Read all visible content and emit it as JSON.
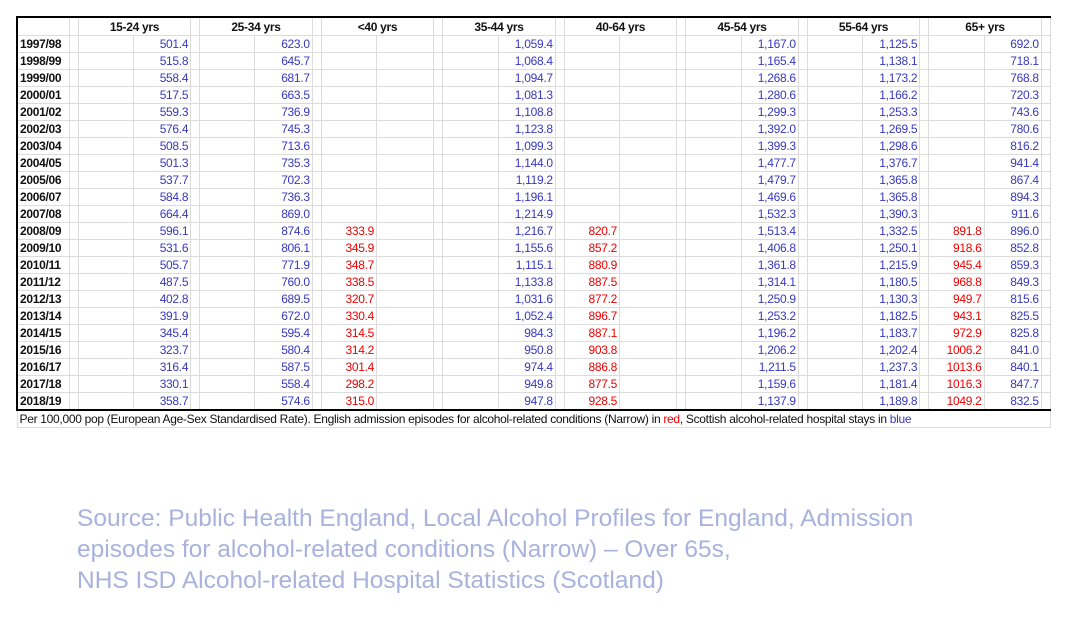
{
  "table": {
    "groups": [
      "15-24 yrs",
      "25-34 yrs",
      "<40 yrs",
      "35-44 yrs",
      "40-64 yrs",
      "45-54 yrs",
      "55-64 yrs",
      "65+ yrs"
    ],
    "columns": [
      {
        "group": 0,
        "series": "blue"
      },
      {
        "group": 1,
        "series": "blue"
      },
      {
        "group": 2,
        "series": "red"
      },
      {
        "group": 3,
        "series": "blue"
      },
      {
        "group": 4,
        "series": "red"
      },
      {
        "group": 5,
        "series": "blue"
      },
      {
        "group": 6,
        "series": "blue"
      },
      {
        "group": 7,
        "series": "red"
      },
      {
        "group": 7,
        "series": "blue"
      }
    ],
    "rows": [
      {
        "year": "1997/98",
        "values": [
          "501.4",
          "623.0",
          "",
          "1,059.4",
          "",
          "1,167.0",
          "1,125.5",
          "",
          "692.0"
        ]
      },
      {
        "year": "1998/99",
        "values": [
          "515.8",
          "645.7",
          "",
          "1,068.4",
          "",
          "1,165.4",
          "1,138.1",
          "",
          "718.1"
        ]
      },
      {
        "year": "1999/00",
        "values": [
          "558.4",
          "681.7",
          "",
          "1,094.7",
          "",
          "1,268.6",
          "1,173.2",
          "",
          "768.8"
        ]
      },
      {
        "year": "2000/01",
        "values": [
          "517.5",
          "663.5",
          "",
          "1,081.3",
          "",
          "1,280.6",
          "1,166.2",
          "",
          "720.3"
        ]
      },
      {
        "year": "2001/02",
        "values": [
          "559.3",
          "736.9",
          "",
          "1,108.8",
          "",
          "1,299.3",
          "1,253.3",
          "",
          "743.6"
        ]
      },
      {
        "year": "2002/03",
        "values": [
          "576.4",
          "745.3",
          "",
          "1,123.8",
          "",
          "1,392.0",
          "1,269.5",
          "",
          "780.6"
        ]
      },
      {
        "year": "2003/04",
        "values": [
          "508.5",
          "713.6",
          "",
          "1,099.3",
          "",
          "1,399.3",
          "1,298.6",
          "",
          "816.2"
        ]
      },
      {
        "year": "2004/05",
        "values": [
          "501.3",
          "735.3",
          "",
          "1,144.0",
          "",
          "1,477.7",
          "1,376.7",
          "",
          "941.4"
        ]
      },
      {
        "year": "2005/06",
        "values": [
          "537.7",
          "702.3",
          "",
          "1,119.2",
          "",
          "1,479.7",
          "1,365.8",
          "",
          "867.4"
        ]
      },
      {
        "year": "2006/07",
        "values": [
          "584.8",
          "736.3",
          "",
          "1,196.1",
          "",
          "1,469.6",
          "1,365.8",
          "",
          "894.3"
        ]
      },
      {
        "year": "2007/08",
        "values": [
          "664.4",
          "869.0",
          "",
          "1,214.9",
          "",
          "1,532.3",
          "1,390.3",
          "",
          "911.6"
        ]
      },
      {
        "year": "2008/09",
        "values": [
          "596.1",
          "874.6",
          "333.9",
          "1,216.7",
          "820.7",
          "1,513.4",
          "1,332.5",
          "891.8",
          "896.0"
        ]
      },
      {
        "year": "2009/10",
        "values": [
          "531.6",
          "806.1",
          "345.9",
          "1,155.6",
          "857.2",
          "1,406.8",
          "1,250.1",
          "918.6",
          "852.8"
        ]
      },
      {
        "year": "2010/11",
        "values": [
          "505.7",
          "771.9",
          "348.7",
          "1,115.1",
          "880.9",
          "1,361.8",
          "1,215.9",
          "945.4",
          "859.3"
        ]
      },
      {
        "year": "2011/12",
        "values": [
          "487.5",
          "760.0",
          "338.5",
          "1,133.8",
          "887.5",
          "1,314.1",
          "1,180.5",
          "968.8",
          "849.3"
        ]
      },
      {
        "year": "2012/13",
        "values": [
          "402.8",
          "689.5",
          "320.7",
          "1,031.6",
          "877.2",
          "1,250.9",
          "1,130.3",
          "949.7",
          "815.6"
        ]
      },
      {
        "year": "2013/14",
        "values": [
          "391.9",
          "672.0",
          "330.4",
          "1,052.4",
          "896.7",
          "1,253.2",
          "1,182.5",
          "943.1",
          "825.5"
        ]
      },
      {
        "year": "2014/15",
        "values": [
          "345.4",
          "595.4",
          "314.5",
          "984.3",
          "887.1",
          "1,196.2",
          "1,183.7",
          "972.9",
          "825.8"
        ]
      },
      {
        "year": "2015/16",
        "values": [
          "323.7",
          "580.4",
          "314.2",
          "950.8",
          "903.8",
          "1,206.2",
          "1,202.4",
          "1006.2",
          "841.0"
        ]
      },
      {
        "year": "2016/17",
        "values": [
          "316.4",
          "587.5",
          "301.4",
          "974.4",
          "886.8",
          "1,211.5",
          "1,237.3",
          "1013.6",
          "840.1"
        ]
      },
      {
        "year": "2017/18",
        "values": [
          "330.1",
          "558.4",
          "298.2",
          "949.8",
          "877.5",
          "1,159.6",
          "1,181.4",
          "1016.3",
          "847.7"
        ]
      },
      {
        "year": "2018/19",
        "values": [
          "358.7",
          "574.6",
          "315.0",
          "947.8",
          "928.5",
          "1,137.9",
          "1,189.8",
          "1049.2",
          "832.5"
        ]
      }
    ],
    "note": {
      "prefix": "Per 100,000 pop (European Age-Sex Standardised Rate). English admission episodes for alcohol-related conditions (Narrow) in ",
      "red_word": "red",
      "middle": ", Scottish alcohol-related hospital stays in ",
      "blue_word": "blue"
    }
  },
  "colors": {
    "english_series": "#f00000",
    "scottish_series": "#3838c0",
    "source_text": "#a8b2dc"
  },
  "source": {
    "line1": "Source: Public Health England, Local Alcohol Profiles for England, Admission",
    "line2": "episodes for alcohol-related conditions (Narrow) – Over 65s,",
    "line3": "NHS ISD Alcohol-related Hospital Statistics (Scotland)"
  }
}
